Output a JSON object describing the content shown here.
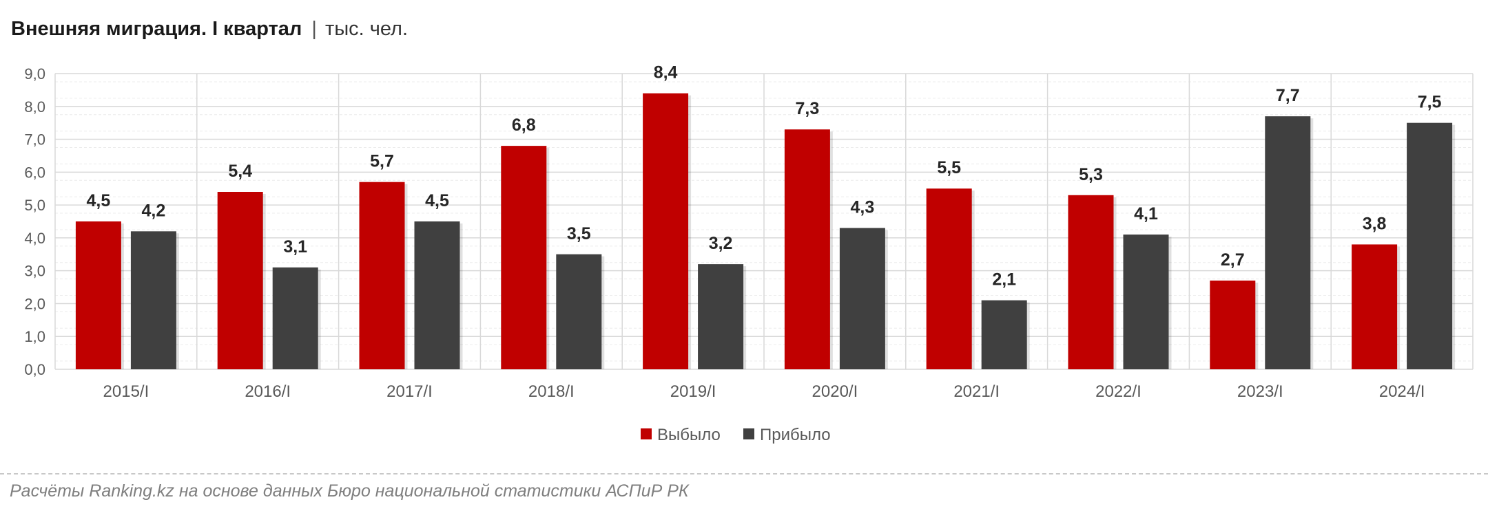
{
  "title": {
    "main": "Внешняя миграция. I квартал",
    "separator": "|",
    "unit": "тыс. чел."
  },
  "footer": {
    "source": "Расчёты Ranking.kz на основе данных Бюро национальной статистики АСПиР РК"
  },
  "colors": {
    "series_out": "#c00000",
    "series_in": "#404040",
    "grid": "#d9d9d9",
    "axis_text": "#595959",
    "label_text": "#262626"
  },
  "chart_data": {
    "type": "bar",
    "categories": [
      "2015/I",
      "2016/I",
      "2017/I",
      "2018/I",
      "2019/I",
      "2020/I",
      "2021/I",
      "2022/I",
      "2023/I",
      "2024/I"
    ],
    "series": [
      {
        "name": "Выбыло",
        "color": "#c00000",
        "values": [
          4.5,
          5.4,
          5.7,
          6.8,
          8.4,
          7.3,
          5.5,
          5.3,
          2.7,
          3.8
        ]
      },
      {
        "name": "Прибыло",
        "color": "#404040",
        "values": [
          4.2,
          3.1,
          4.5,
          3.5,
          3.2,
          4.3,
          2.1,
          4.1,
          7.7,
          7.5
        ]
      }
    ],
    "ylim": [
      0,
      9
    ],
    "yticks": [
      "0,0",
      "1,0",
      "2,0",
      "3,0",
      "4,0",
      "5,0",
      "6,0",
      "7,0",
      "8,0",
      "9,0"
    ],
    "data_labels": [
      [
        "4,5",
        "5,4",
        "5,7",
        "6,8",
        "8,4",
        "7,3",
        "5,5",
        "5,3",
        "2,7",
        "3,8"
      ],
      [
        "4,2",
        "3,1",
        "4,5",
        "3,5",
        "3,2",
        "4,3",
        "2,1",
        "4,1",
        "7,7",
        "7,5"
      ]
    ],
    "grid": true,
    "legend": "bottom-center"
  }
}
